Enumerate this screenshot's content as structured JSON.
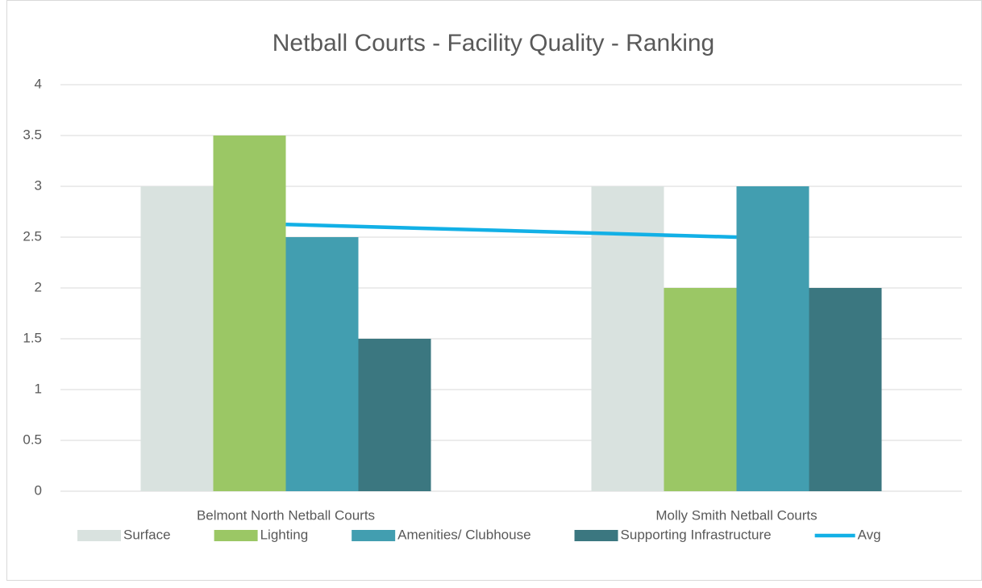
{
  "chart_data": {
    "type": "bar",
    "title": "Netball Courts - Facility Quality - Ranking",
    "categories": [
      "Belmont North Netball Courts",
      "Molly Smith Netball Courts"
    ],
    "series": [
      {
        "name": "Surface",
        "color": "#d9e2df",
        "values": [
          3,
          3
        ]
      },
      {
        "name": "Lighting",
        "color": "#9bc765",
        "values": [
          3.5,
          2
        ]
      },
      {
        "name": "Amenities/ Clubhouse",
        "color": "#429eb0",
        "values": [
          2.5,
          3
        ]
      },
      {
        "name": "Supporting Infrastructure",
        "color": "#3b7780",
        "values": [
          1.5,
          2
        ]
      },
      {
        "name": "Avg",
        "color": "#12b0e6",
        "type": "line",
        "values": [
          2.625,
          2.5
        ]
      }
    ],
    "ylim": [
      0,
      4
    ],
    "yticks": [
      0,
      0.5,
      1,
      1.5,
      2,
      2.5,
      3,
      3.5,
      4
    ],
    "grid": true,
    "legend": "bottom"
  }
}
